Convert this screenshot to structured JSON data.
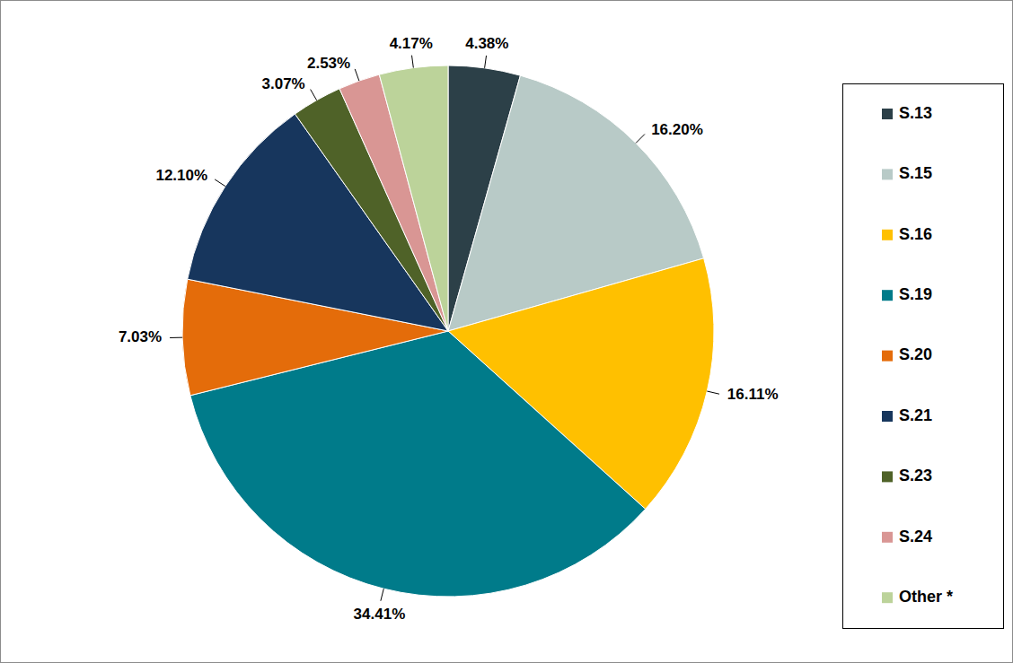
{
  "chart_data": {
    "type": "pie",
    "categories": [
      "S.13",
      "S.15",
      "S.16",
      "S.19",
      "S.20",
      "S.21",
      "S.23",
      "S.24",
      "Other *"
    ],
    "values": [
      4.38,
      16.2,
      16.11,
      34.41,
      7.03,
      12.1,
      3.07,
      2.53,
      4.17
    ],
    "value_labels": [
      "4.38%",
      "16.20%",
      "16.11%",
      "34.41%",
      "7.03%",
      "12.10%",
      "3.07%",
      "2.53%",
      "4.17%"
    ],
    "colors": [
      "#2c4048",
      "#b8cac7",
      "#ffc000",
      "#007b8a",
      "#e46c0a",
      "#17365d",
      "#4f6228",
      "#d99694",
      "#bcd39a"
    ],
    "data_labels": true,
    "legend": "right"
  }
}
